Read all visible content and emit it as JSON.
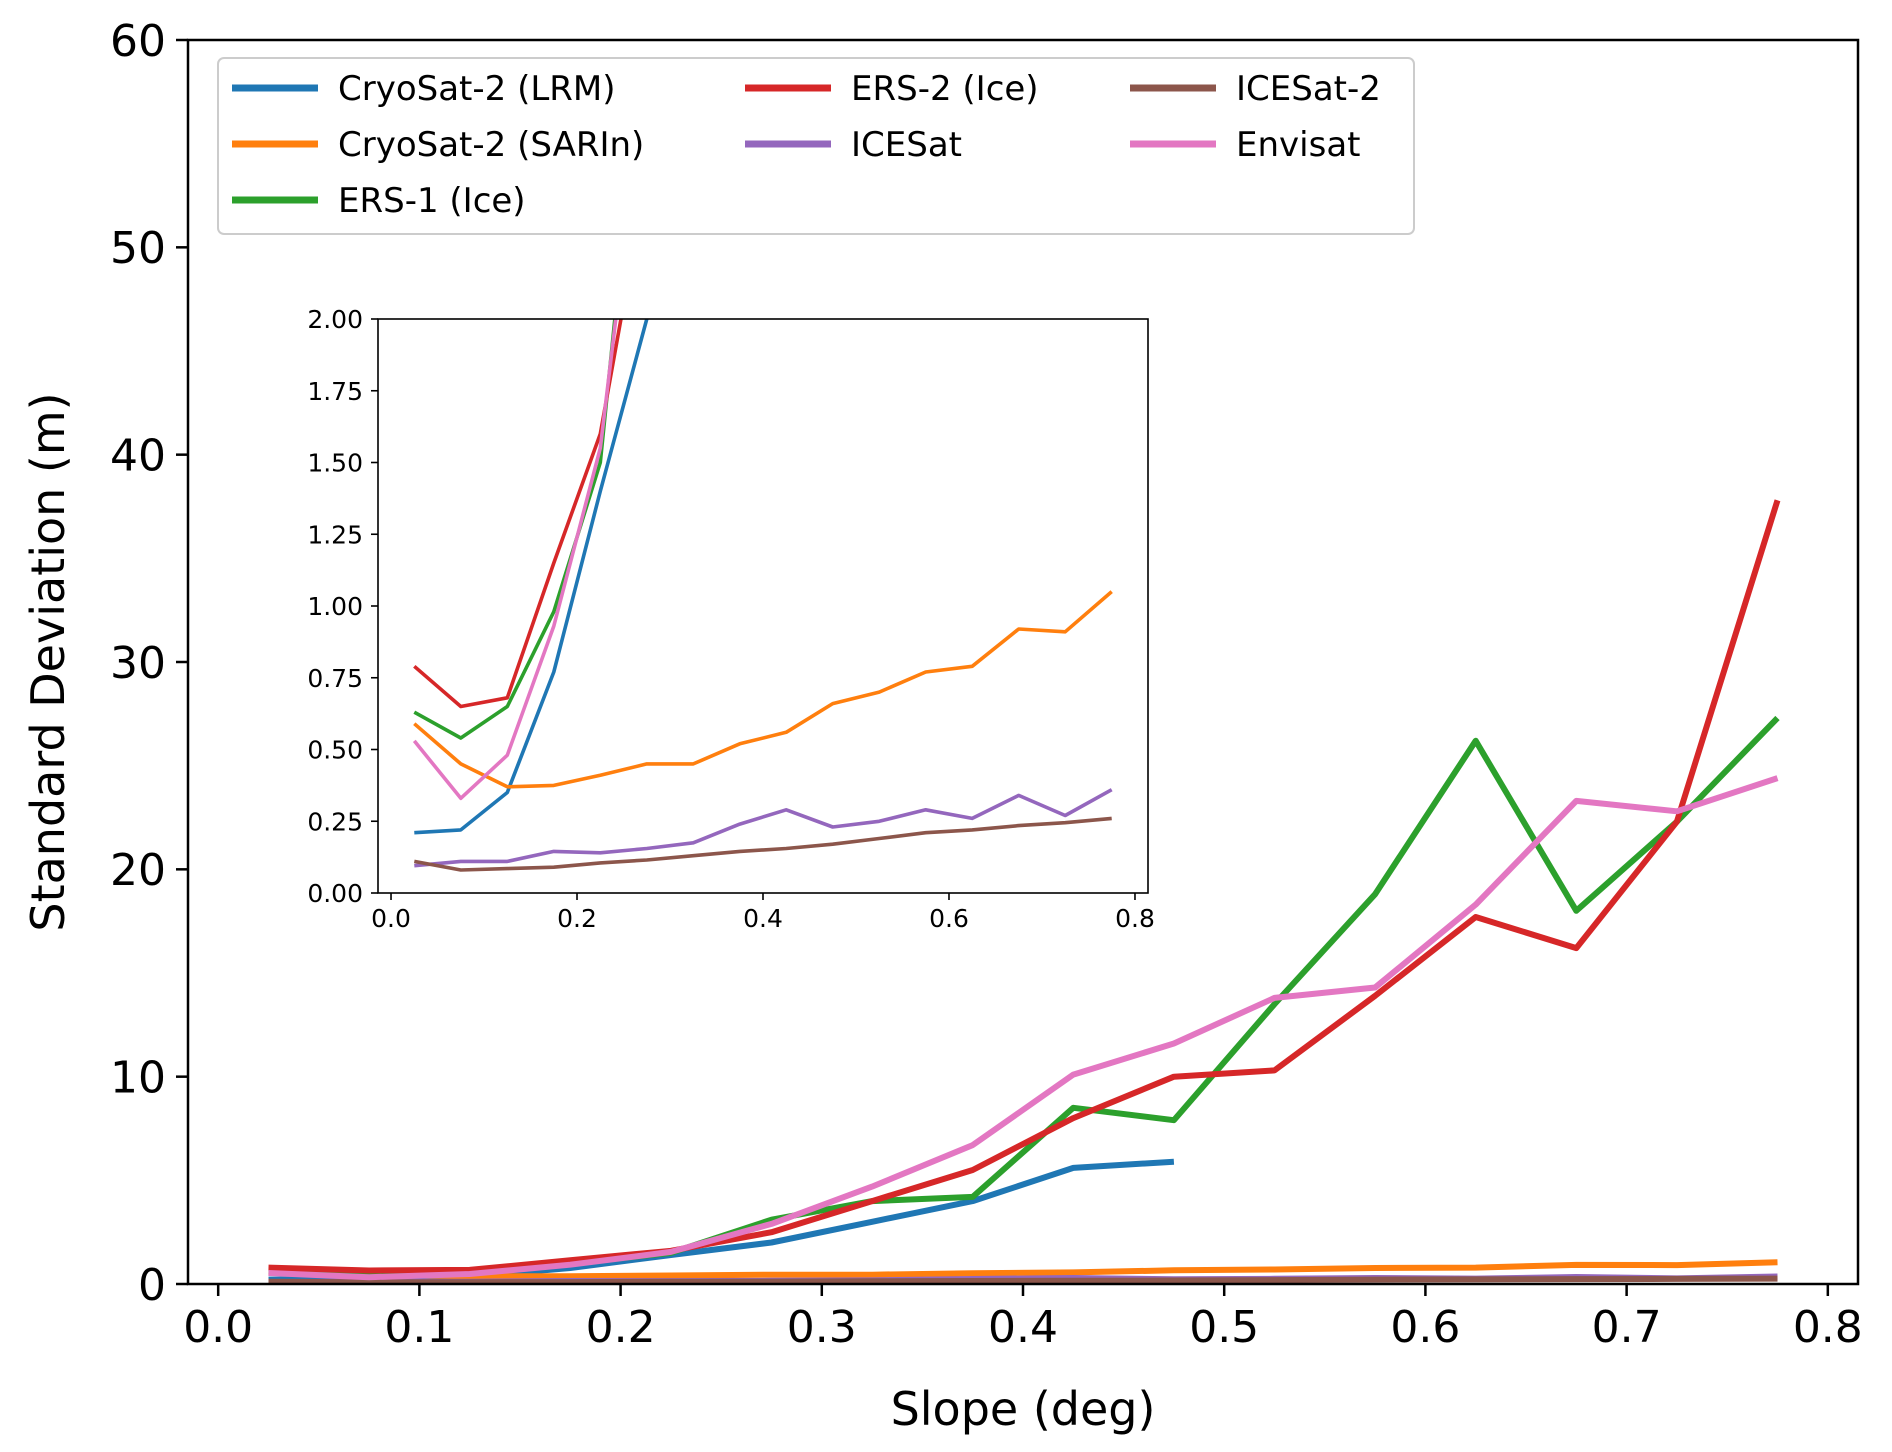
{
  "chart_data": [
    {
      "type": "line",
      "title": "",
      "xlabel": "Slope (deg)",
      "ylabel": "Standard Deviation (m)",
      "xlim": [
        -0.015,
        0.815
      ],
      "ylim": [
        0,
        60
      ],
      "xticks": [
        0.0,
        0.1,
        0.2,
        0.3,
        0.4,
        0.5,
        0.6,
        0.7,
        0.8
      ],
      "xtick_labels": [
        "0.0",
        "0.1",
        "0.2",
        "0.3",
        "0.4",
        "0.5",
        "0.6",
        "0.7",
        "0.8"
      ],
      "yticks": [
        0,
        10,
        20,
        30,
        40,
        50,
        60
      ],
      "ytick_labels": [
        "0",
        "10",
        "20",
        "30",
        "40",
        "50",
        "60"
      ],
      "grid": false,
      "legend": "upper-left",
      "legend_columns": 3,
      "series": [
        {
          "name": "CryoSat-2 (LRM)",
          "color": "#1f77b4",
          "x": [
            0.025,
            0.075,
            0.125,
            0.175,
            0.225,
            0.275,
            0.325,
            0.375,
            0.425,
            0.475
          ],
          "y": [
            0.21,
            0.22,
            0.35,
            0.77,
            1.4,
            2.0,
            3.0,
            4.0,
            5.6,
            5.9
          ]
        },
        {
          "name": "CryoSat-2 (SARIn)",
          "color": "#ff7f0e",
          "x": [
            0.025,
            0.075,
            0.125,
            0.175,
            0.225,
            0.275,
            0.325,
            0.375,
            0.425,
            0.475,
            0.525,
            0.575,
            0.625,
            0.675,
            0.725,
            0.775
          ],
          "y": [
            0.59,
            0.45,
            0.37,
            0.375,
            0.41,
            0.45,
            0.45,
            0.52,
            0.56,
            0.66,
            0.7,
            0.77,
            0.79,
            0.92,
            0.91,
            1.05
          ]
        },
        {
          "name": "ERS-1 (Ice)",
          "color": "#2ca02c",
          "x": [
            0.025,
            0.075,
            0.125,
            0.175,
            0.225,
            0.275,
            0.325,
            0.375,
            0.425,
            0.475,
            0.525,
            0.575,
            0.625,
            0.675,
            0.725,
            0.775
          ],
          "y": [
            0.63,
            0.54,
            0.65,
            0.98,
            1.5,
            3.1,
            4.0,
            4.2,
            8.5,
            7.9,
            13.5,
            18.8,
            26.2,
            18.0,
            22.3,
            27.3
          ]
        },
        {
          "name": "ERS-2 (Ice)",
          "color": "#d62728",
          "x": [
            0.025,
            0.075,
            0.125,
            0.175,
            0.225,
            0.275,
            0.325,
            0.375,
            0.425,
            0.475,
            0.525,
            0.575,
            0.625,
            0.675,
            0.725,
            0.775
          ],
          "y": [
            0.79,
            0.65,
            0.68,
            1.15,
            1.6,
            2.5,
            4.0,
            5.5,
            8.0,
            10.0,
            10.3,
            13.9,
            17.7,
            16.2,
            22.3,
            37.8
          ]
        },
        {
          "name": "ICESat",
          "color": "#9467bd",
          "x": [
            0.025,
            0.075,
            0.125,
            0.175,
            0.225,
            0.275,
            0.325,
            0.375,
            0.425,
            0.475,
            0.525,
            0.575,
            0.625,
            0.675,
            0.725,
            0.775
          ],
          "y": [
            0.095,
            0.11,
            0.11,
            0.145,
            0.14,
            0.155,
            0.175,
            0.24,
            0.29,
            0.23,
            0.25,
            0.29,
            0.26,
            0.34,
            0.27,
            0.36
          ]
        },
        {
          "name": "ICESat-2",
          "color": "#8c564b",
          "x": [
            0.025,
            0.075,
            0.125,
            0.175,
            0.225,
            0.275,
            0.325,
            0.375,
            0.425,
            0.475,
            0.525,
            0.575,
            0.625,
            0.675,
            0.725,
            0.775
          ],
          "y": [
            0.11,
            0.08,
            0.085,
            0.09,
            0.105,
            0.115,
            0.13,
            0.145,
            0.155,
            0.17,
            0.19,
            0.21,
            0.22,
            0.235,
            0.245,
            0.26
          ]
        },
        {
          "name": "Envisat",
          "color": "#e377c2",
          "x": [
            0.025,
            0.075,
            0.125,
            0.175,
            0.225,
            0.275,
            0.325,
            0.375,
            0.425,
            0.475,
            0.525,
            0.575,
            0.625,
            0.675,
            0.725,
            0.775
          ],
          "y": [
            0.53,
            0.33,
            0.48,
            0.93,
            1.55,
            2.9,
            4.7,
            6.7,
            10.1,
            11.6,
            13.8,
            14.3,
            18.3,
            23.3,
            22.8,
            24.4
          ]
        }
      ]
    },
    {
      "type": "line",
      "title": "",
      "xlabel": "",
      "ylabel": "",
      "xlim": [
        -0.014,
        0.814
      ],
      "ylim": [
        0,
        2.0
      ],
      "xticks": [
        0.0,
        0.2,
        0.4,
        0.6,
        0.8
      ],
      "xtick_labels": [
        "0.0",
        "0.2",
        "0.4",
        "0.6",
        "0.8"
      ],
      "yticks": [
        0.0,
        0.25,
        0.5,
        0.75,
        1.0,
        1.25,
        1.5,
        1.75,
        2.0
      ],
      "ytick_labels": [
        "0.00",
        "0.25",
        "0.50",
        "0.75",
        "1.00",
        "1.25",
        "1.50",
        "1.75",
        "2.00"
      ],
      "grid": false,
      "legend": "none",
      "series_ref": "same series as main chart, zoomed to 0–2 m"
    }
  ]
}
